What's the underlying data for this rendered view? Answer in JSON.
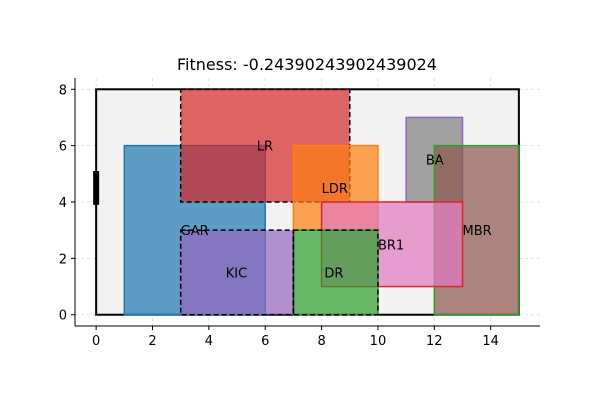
{
  "chart_data": {
    "type": "floorplan",
    "title": "Fitness: -0.24390243902439024",
    "xlabel": "",
    "ylabel": "",
    "xlim": [
      -0.75,
      15.75
    ],
    "ylim": [
      -0.4,
      8.4
    ],
    "x_ticks": [
      0,
      2,
      4,
      6,
      8,
      10,
      12,
      14
    ],
    "y_ticks": [
      0,
      2,
      4,
      6,
      8
    ],
    "grid": true,
    "background": {
      "x0": 0,
      "y0": 0,
      "x1": 15,
      "y1": 8,
      "fill": "#f2f2f2",
      "stroke": "#000000"
    },
    "door": {
      "x": 0,
      "y0": 3.9,
      "y1": 5.1,
      "color": "#000000"
    },
    "rooms": [
      {
        "label": "GAR",
        "x0": 1,
        "y0": 0,
        "x1": 6,
        "y1": 6,
        "fill": "#1f77b4",
        "stroke": "#1f77b4",
        "dashed": false,
        "label_at": [
          3,
          3
        ]
      },
      {
        "label": "LR",
        "x0": 3,
        "y0": 4,
        "x1": 9,
        "y1": 8,
        "fill": "#d62728",
        "stroke": "#000000",
        "dashed": true,
        "label_at": [
          5.7,
          6
        ]
      },
      {
        "label": "LDR",
        "x0": 7,
        "y0": 3,
        "x1": 10,
        "y1": 6,
        "fill": "#ff7f0e",
        "stroke": "#ff7f0e",
        "dashed": false,
        "label_at": [
          8,
          4.5
        ]
      },
      {
        "label": "BA",
        "x0": 11,
        "y0": 4,
        "x1": 13,
        "y1": 7,
        "fill": "#7f7f7f",
        "stroke": "#9467bd",
        "dashed": false,
        "label_at": [
          11.7,
          5.5
        ]
      },
      {
        "label": "MBR",
        "x0": 12,
        "y0": 0,
        "x1": 15,
        "y1": 6,
        "fill": "#8c564b",
        "stroke": "#2ca02c",
        "dashed": false,
        "label_at": [
          13,
          3
        ]
      },
      {
        "label": "BR1",
        "x0": 8,
        "y0": 1,
        "x1": 13,
        "y1": 4,
        "fill": "#e377c2",
        "stroke": "#d62728",
        "dashed": false,
        "label_at": [
          10,
          2.5
        ]
      },
      {
        "label": "DR",
        "x0": 7,
        "y0": 0,
        "x1": 10,
        "y1": 3,
        "fill": "#2ca02c",
        "stroke": "#2ca02c",
        "dashed": false,
        "label_at": [
          8.1,
          1.5
        ]
      },
      {
        "label": "KIC",
        "x0": 3,
        "y0": 0,
        "x1": 7,
        "y1": 3,
        "fill": "#9467bd",
        "stroke": "#000000",
        "dashed": true,
        "label_at": [
          4.6,
          1.5
        ]
      },
      {
        "label": "",
        "x0": 7,
        "y0": 0,
        "x1": 10,
        "y1": 3,
        "fill": "none",
        "stroke": "#000000",
        "dashed": true,
        "label_at": null
      }
    ]
  }
}
